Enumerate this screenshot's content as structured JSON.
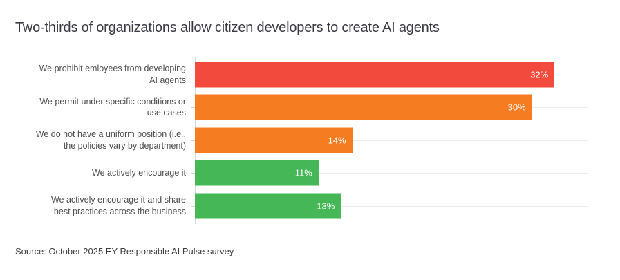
{
  "title": "Two-thirds of organizations allow citizen developers to create AI agents",
  "source": "Source: October 2025 EY Responsible AI Pulse survey",
  "colors": {
    "red": "#F24B3E",
    "orange": "#F57C20",
    "green": "#45B757",
    "axis_line": "#D9D9D9",
    "gridline": "#ECECEC",
    "title_text": "#3A3A44",
    "label_text": "#4D4D4D",
    "value_text": "#FFFFFF"
  },
  "chart_data": {
    "type": "bar",
    "orientation": "horizontal",
    "title": "Two-thirds of organizations allow citizen developers to create AI agents",
    "categories": [
      "We prohibit emloyees from developing AI agents",
      "We permit under specific conditions or use cases",
      "We do not have a uniform position (i.e., the policies vary by department)",
      "We actively encourage it",
      "We actively encourage it and share best practices across the business"
    ],
    "category_label_lines": [
      [
        "We prohibit emloyees from developing",
        "AI agents"
      ],
      [
        "We permit under specific conditions or",
        "use cases"
      ],
      [
        "We do not have a uniform position (i.e.,",
        "the policies vary by department)"
      ],
      [
        "We actively encourage it"
      ],
      [
        "We actively encourage it and share",
        "best practices across the business"
      ]
    ],
    "values": [
      32,
      30,
      14,
      11,
      13
    ],
    "value_labels": [
      "32%",
      "30%",
      "14%",
      "11%",
      "13%"
    ],
    "bar_colors": [
      "#F24B3E",
      "#F57C20",
      "#F57C20",
      "#45B757",
      "#45B757"
    ],
    "xlim": [
      0,
      35
    ],
    "xlabel": "",
    "ylabel": "",
    "grid": "horizontal row gridlines, no x-axis labels",
    "legend": "none",
    "value_label_position": "inside-right",
    "source": "Source: October 2025 EY Responsible AI Pulse survey"
  }
}
